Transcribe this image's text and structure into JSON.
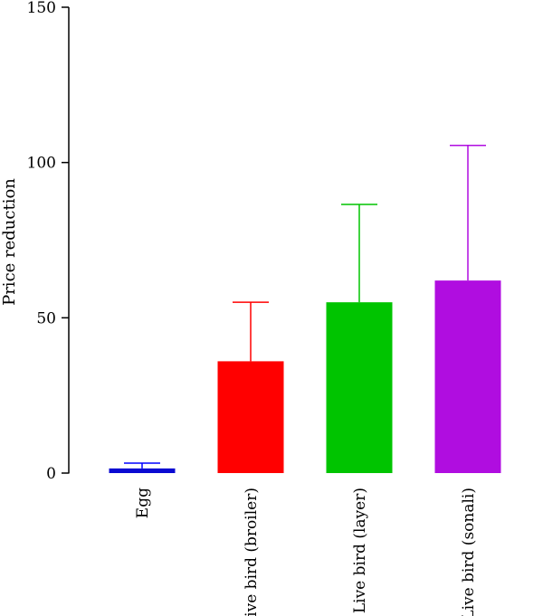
{
  "chart_data": {
    "type": "bar",
    "title": "",
    "xlabel": "",
    "ylabel": "Price reduction",
    "ylim": [
      0,
      150
    ],
    "yticks": [
      0,
      50,
      100,
      150
    ],
    "grid": false,
    "categories": [
      "Egg",
      "Live bird (broiler)",
      "Live bird (layer)",
      "Live bird (sonali)"
    ],
    "values": [
      1.5,
      36,
      55,
      62
    ],
    "error_upper": [
      3.2,
      55,
      86.5,
      105.5
    ],
    "colors": [
      "#0a0ad2",
      "#ff0000",
      "#00c400",
      "#b00de0"
    ],
    "error_colors": [
      "#0000ff",
      "#ff0000",
      "#00c400",
      "#b00de0"
    ]
  }
}
